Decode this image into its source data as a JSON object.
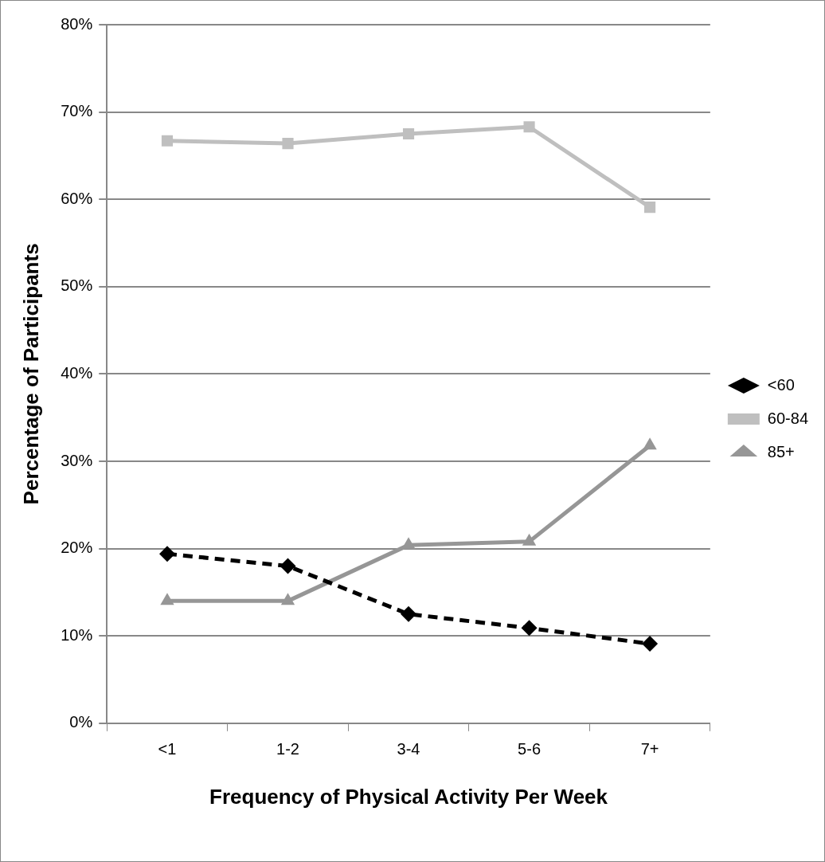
{
  "chart_data": {
    "type": "line",
    "xlabel": "Frequency of Physical Activity Per Week",
    "ylabel": "Percentage of Participants",
    "categories": [
      "<1",
      "1-2",
      "3-4",
      "5-6",
      "7+"
    ],
    "series": [
      {
        "name": "<60",
        "color": "#000000",
        "marker": "diamond",
        "line_style": "dashed",
        "values": [
          19.4,
          18.0,
          12.5,
          10.9,
          9.1
        ]
      },
      {
        "name": "60-84",
        "color": "#bfbfbf",
        "marker": "square",
        "line_style": "solid",
        "values": [
          66.7,
          66.4,
          67.5,
          68.3,
          59.1
        ]
      },
      {
        "name": "85+",
        "color": "#969696",
        "marker": "triangle",
        "line_style": "solid",
        "values": [
          14.0,
          14.0,
          20.4,
          20.8,
          31.8
        ]
      }
    ],
    "ylim": [
      0,
      80
    ],
    "yticks": [
      {
        "value": 0,
        "label": "0%"
      },
      {
        "value": 10,
        "label": "10%"
      },
      {
        "value": 20,
        "label": "20%"
      },
      {
        "value": 30,
        "label": "30%"
      },
      {
        "value": 40,
        "label": "40%"
      },
      {
        "value": 50,
        "label": "50%"
      },
      {
        "value": 60,
        "label": "60%"
      },
      {
        "value": 70,
        "label": "70%"
      },
      {
        "value": 80,
        "label": "80%"
      }
    ],
    "grid": "y",
    "legend": "right"
  }
}
